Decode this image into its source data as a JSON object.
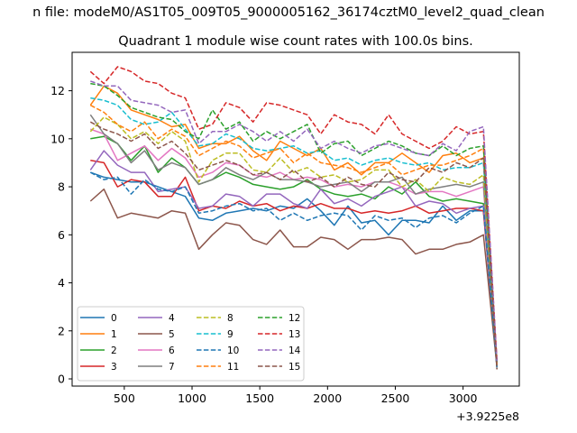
{
  "chart_data": {
    "type": "line",
    "suptitle": "n file: modeM0/AS1T05_009T05_9000005162_36174cztM0_level2_quad_clean",
    "title": "Quadrant 1 module wise count rates with 100.0s bins.",
    "xlabel": "",
    "ylabel": "",
    "x_offset_label": "+3.9225e8",
    "xlim": [
      115,
      3415
    ],
    "ylim": [
      -0.3,
      13.6
    ],
    "xticks": [
      500,
      1000,
      1500,
      2000,
      2500,
      3000
    ],
    "yticks": [
      0,
      2,
      4,
      6,
      8,
      10,
      12
    ],
    "grid": false,
    "legend_position": "lower-left",
    "x": [
      250,
      350,
      450,
      550,
      650,
      750,
      850,
      950,
      1050,
      1150,
      1250,
      1350,
      1450,
      1550,
      1650,
      1750,
      1850,
      1950,
      2050,
      2150,
      2250,
      2350,
      2450,
      2550,
      2650,
      2750,
      2850,
      2950,
      3050,
      3150,
      3250
    ],
    "series": [
      {
        "name": "0",
        "color": "#1f77b4",
        "dash": "solid",
        "values": [
          8.6,
          8.4,
          8.3,
          8.2,
          8.2,
          8.0,
          7.8,
          7.6,
          6.7,
          6.6,
          6.9,
          7.0,
          7.1,
          7.0,
          7.2,
          7.1,
          7.5,
          7.0,
          6.4,
          7.2,
          6.5,
          6.6,
          6.0,
          6.6,
          6.6,
          6.5,
          7.2,
          6.6,
          7.0,
          7.0,
          0.5
        ]
      },
      {
        "name": "1",
        "color": "#ff7f0e",
        "dash": "solid",
        "values": [
          11.4,
          12.2,
          11.9,
          11.2,
          11.0,
          10.8,
          10.5,
          10.6,
          9.6,
          9.8,
          9.8,
          10.1,
          9.5,
          9.1,
          9.9,
          9.6,
          9.3,
          9.6,
          8.7,
          9.0,
          8.5,
          9.0,
          9.0,
          9.4,
          9.0,
          8.6,
          9.3,
          9.4,
          9.0,
          9.2,
          0.6
        ]
      },
      {
        "name": "2",
        "color": "#2ca02c",
        "dash": "solid",
        "values": [
          10.0,
          10.1,
          9.8,
          9.1,
          9.7,
          8.6,
          9.2,
          8.8,
          8.1,
          8.3,
          8.6,
          8.4,
          8.1,
          8.0,
          7.9,
          8.0,
          8.3,
          7.9,
          7.7,
          7.6,
          7.7,
          7.5,
          8.0,
          7.7,
          8.2,
          7.6,
          7.4,
          7.5,
          7.4,
          7.3,
          0.5
        ]
      },
      {
        "name": "3",
        "color": "#d62728",
        "dash": "solid",
        "values": [
          9.1,
          9.0,
          8.0,
          8.3,
          8.2,
          7.6,
          7.6,
          8.4,
          7.0,
          7.2,
          7.1,
          7.4,
          7.2,
          7.3,
          7.0,
          7.2,
          7.1,
          7.3,
          7.1,
          7.1,
          6.9,
          7.0,
          6.9,
          7.0,
          7.2,
          6.9,
          7.0,
          7.1,
          7.1,
          7.0,
          0.6
        ]
      },
      {
        "name": "4",
        "color": "#9467bd",
        "dash": "solid",
        "values": [
          8.7,
          9.5,
          8.9,
          8.6,
          8.6,
          7.8,
          7.9,
          8.0,
          7.1,
          7.2,
          7.7,
          7.6,
          7.2,
          7.7,
          7.7,
          7.3,
          7.1,
          7.9,
          7.3,
          7.5,
          7.2,
          7.6,
          7.8,
          8.0,
          7.2,
          7.4,
          7.3,
          6.9,
          7.1,
          7.2,
          0.6
        ]
      },
      {
        "name": "5",
        "color": "#8c564b",
        "dash": "solid",
        "values": [
          7.4,
          7.9,
          6.7,
          6.9,
          6.8,
          6.7,
          7.0,
          6.9,
          5.4,
          6.0,
          6.5,
          6.4,
          5.8,
          5.6,
          6.2,
          5.5,
          5.5,
          5.9,
          5.8,
          5.4,
          5.8,
          5.8,
          5.9,
          5.8,
          5.2,
          5.4,
          5.4,
          5.6,
          5.7,
          6.0,
          0.5
        ]
      },
      {
        "name": "6",
        "color": "#e377c2",
        "dash": "solid",
        "values": [
          10.4,
          10.2,
          9.1,
          9.4,
          9.7,
          9.1,
          9.6,
          9.2,
          8.4,
          8.6,
          9.0,
          8.9,
          8.5,
          8.4,
          8.6,
          8.3,
          8.4,
          8.3,
          8.0,
          8.1,
          8.0,
          8.2,
          8.2,
          8.0,
          7.7,
          7.8,
          7.8,
          7.6,
          7.8,
          8.0,
          0.5
        ]
      },
      {
        "name": "7",
        "color": "#7f7f7f",
        "dash": "solid",
        "values": [
          11.0,
          10.2,
          9.8,
          9.0,
          9.5,
          8.7,
          9.0,
          8.8,
          8.1,
          8.3,
          8.8,
          8.5,
          8.3,
          8.6,
          8.3,
          8.3,
          8.2,
          8.0,
          8.1,
          8.2,
          7.8,
          8.2,
          8.2,
          8.4,
          7.7,
          7.9,
          8.0,
          8.1,
          8.0,
          8.2,
          0.4
        ]
      },
      {
        "name": "8",
        "color": "#bcbd22",
        "dash": "dashed",
        "values": [
          10.3,
          10.9,
          10.6,
          10.0,
          10.3,
          9.8,
          10.3,
          9.9,
          8.2,
          9.1,
          9.4,
          9.4,
          8.7,
          8.6,
          9.2,
          8.6,
          8.8,
          8.4,
          8.5,
          8.2,
          8.3,
          8.7,
          8.7,
          8.0,
          8.3,
          7.8,
          8.4,
          8.2,
          8.1,
          8.5,
          0.5
        ]
      },
      {
        "name": "9",
        "color": "#17becf",
        "dash": "dashed",
        "values": [
          11.7,
          11.6,
          11.4,
          10.8,
          10.6,
          10.7,
          11.1,
          10.4,
          9.7,
          9.8,
          10.2,
          10.0,
          9.6,
          9.5,
          9.6,
          9.7,
          9.4,
          9.5,
          9.1,
          9.2,
          8.9,
          9.1,
          9.2,
          9.0,
          8.9,
          9.0,
          8.7,
          8.8,
          8.8,
          9.0,
          0.6
        ]
      },
      {
        "name": "10",
        "color": "#1f77b4",
        "dash": "dashed",
        "values": [
          8.6,
          8.3,
          8.4,
          7.7,
          8.3,
          7.9,
          7.8,
          8.0,
          6.9,
          7.0,
          7.2,
          7.3,
          7.0,
          7.1,
          6.6,
          6.9,
          6.6,
          6.8,
          6.9,
          6.8,
          6.2,
          6.8,
          6.6,
          6.7,
          6.3,
          6.7,
          6.8,
          6.5,
          6.9,
          7.2,
          0.5
        ]
      },
      {
        "name": "11",
        "color": "#ff7f0e",
        "dash": "dashed",
        "values": [
          11.4,
          11.1,
          10.6,
          10.3,
          10.7,
          10.0,
          10.4,
          10.1,
          9.3,
          9.6,
          9.9,
          9.7,
          9.2,
          9.4,
          9.6,
          9.0,
          9.4,
          9.0,
          8.9,
          8.8,
          8.6,
          8.8,
          9.0,
          8.5,
          8.7,
          8.9,
          8.9,
          9.1,
          9.3,
          9.6,
          0.6
        ]
      },
      {
        "name": "12",
        "color": "#2ca02c",
        "dash": "dashed",
        "values": [
          12.3,
          12.2,
          11.8,
          11.3,
          11.1,
          10.9,
          10.8,
          10.3,
          10.0,
          11.2,
          10.4,
          10.7,
          9.9,
          10.3,
          10.0,
          10.3,
          10.6,
          9.4,
          9.8,
          9.9,
          9.3,
          9.6,
          9.9,
          9.7,
          9.4,
          9.3,
          9.7,
          9.3,
          9.6,
          9.7,
          0.7
        ]
      },
      {
        "name": "13",
        "color": "#d62728",
        "dash": "dashed",
        "values": [
          12.8,
          12.3,
          13.0,
          12.8,
          12.4,
          12.3,
          11.9,
          11.7,
          10.4,
          10.6,
          11.5,
          11.3,
          10.7,
          11.5,
          11.4,
          11.2,
          11.0,
          10.2,
          11.0,
          10.7,
          10.6,
          10.2,
          11.0,
          10.2,
          9.9,
          9.6,
          9.9,
          10.5,
          10.2,
          10.3,
          0.8
        ]
      },
      {
        "name": "14",
        "color": "#9467bd",
        "dash": "dashed",
        "values": [
          12.4,
          12.2,
          12.2,
          11.6,
          11.5,
          11.4,
          11.1,
          11.2,
          9.8,
          10.3,
          10.3,
          10.6,
          10.3,
          9.9,
          10.3,
          9.9,
          10.4,
          9.6,
          9.9,
          9.6,
          9.4,
          9.7,
          9.8,
          9.6,
          9.4,
          9.3,
          9.8,
          9.5,
          10.3,
          10.5,
          0.7
        ]
      },
      {
        "name": "15",
        "color": "#8c564b",
        "dash": "dashed",
        "values": [
          10.7,
          10.4,
          10.2,
          9.9,
          10.2,
          9.6,
          9.9,
          9.4,
          8.7,
          8.9,
          9.1,
          8.9,
          8.5,
          8.6,
          8.3,
          8.7,
          8.2,
          8.4,
          8.0,
          8.4,
          8.1,
          8.0,
          8.6,
          8.3,
          8.2,
          8.8,
          8.6,
          9.0,
          8.8,
          9.2,
          0.4
        ]
      }
    ]
  }
}
